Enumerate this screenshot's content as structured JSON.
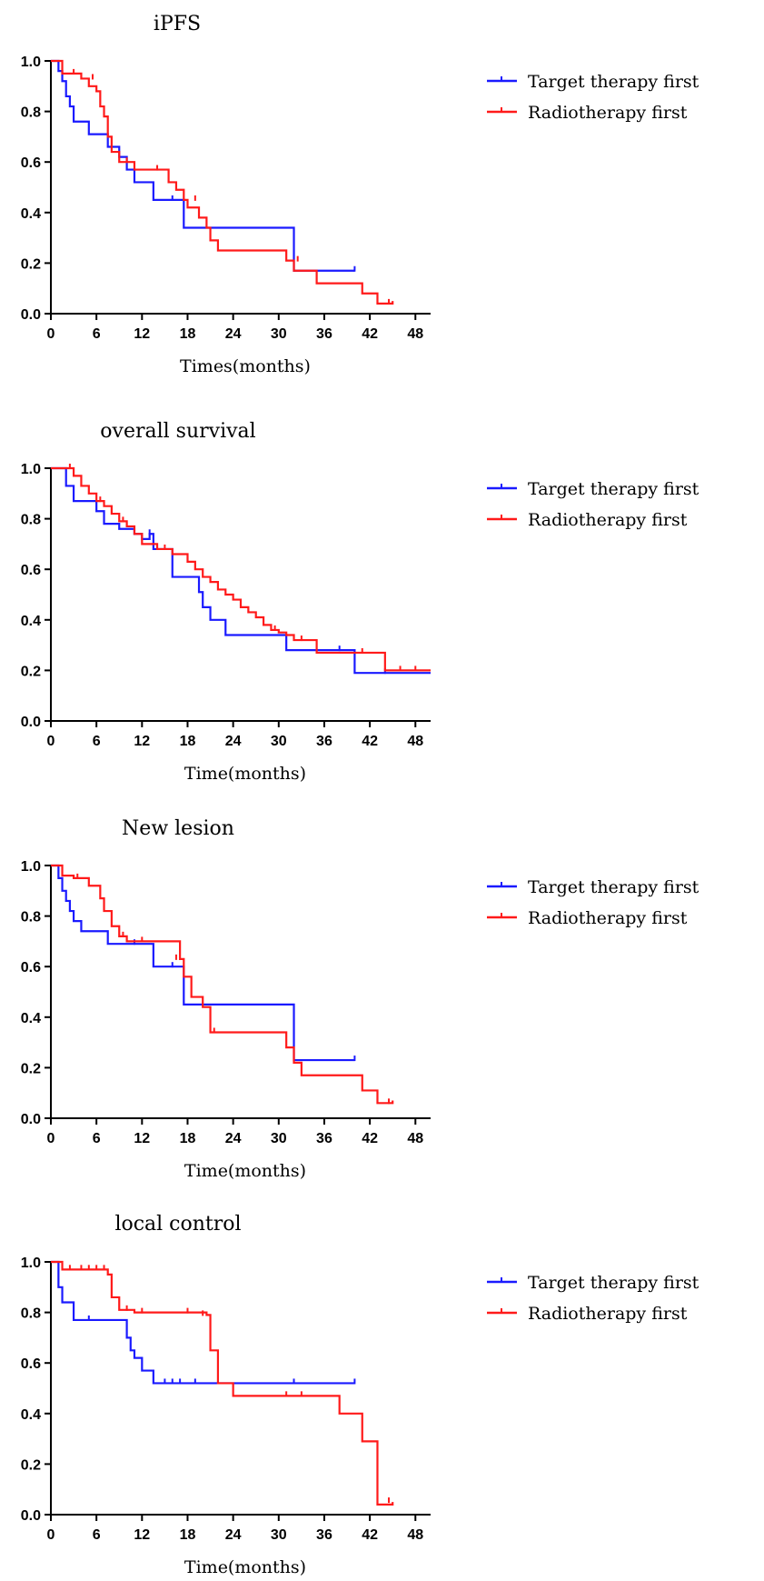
{
  "chart_data": [
    {
      "type": "line",
      "title": "iPFS",
      "xlabel": "Times(months)",
      "ylabel": "",
      "xlim": [
        0,
        50
      ],
      "ylim": [
        0,
        1.0
      ],
      "xticks": [
        0,
        6,
        12,
        18,
        24,
        30,
        36,
        42,
        48
      ],
      "yticks": [
        0.0,
        0.2,
        0.4,
        0.6,
        0.8,
        1.0
      ],
      "xtick_labels": [
        "0",
        "6",
        "12",
        "18",
        "24",
        "30",
        "36",
        "42",
        "48"
      ],
      "ytick_labels": [
        "0.0",
        "0.2",
        "0.4",
        "0.6",
        "0.8",
        "1.0"
      ],
      "grid": false,
      "legend_position": "right",
      "series": [
        {
          "name": "Target therapy first",
          "color": "#1a1aff",
          "x": [
            0,
            1,
            1.5,
            2,
            2.5,
            3,
            5,
            7.5,
            9,
            10,
            11,
            13.5,
            15,
            16,
            17,
            17.5,
            20,
            32,
            40
          ],
          "y": [
            1.0,
            0.96,
            0.92,
            0.86,
            0.82,
            0.76,
            0.71,
            0.66,
            0.62,
            0.57,
            0.52,
            0.45,
            0.45,
            0.45,
            0.45,
            0.34,
            0.34,
            0.17,
            0.17
          ],
          "censor_x": [
            16,
            40
          ],
          "censor_y": [
            0.45,
            0.17
          ]
        },
        {
          "name": "Radiotherapy first",
          "color": "#ff1a1a",
          "x": [
            0,
            1.5,
            2,
            4,
            5,
            6,
            6.5,
            7,
            7.5,
            8,
            9,
            11,
            15.5,
            16.5,
            17.5,
            18,
            19.5,
            20.5,
            21,
            22,
            31,
            32,
            35,
            41,
            43,
            45
          ],
          "y": [
            1.0,
            0.95,
            0.95,
            0.93,
            0.9,
            0.88,
            0.82,
            0.78,
            0.7,
            0.64,
            0.6,
            0.57,
            0.52,
            0.49,
            0.45,
            0.42,
            0.38,
            0.34,
            0.29,
            0.25,
            0.21,
            0.17,
            0.12,
            0.08,
            0.04,
            0.05
          ],
          "censor_x": [
            3,
            5.5,
            10,
            14,
            19,
            32.5,
            44.5
          ],
          "censor_y": [
            0.95,
            0.93,
            0.6,
            0.57,
            0.45,
            0.21,
            0.04
          ]
        }
      ]
    },
    {
      "type": "line",
      "title": "overall survival",
      "xlabel": "Time(months)",
      "ylabel": "",
      "xlim": [
        0,
        50
      ],
      "ylim": [
        0,
        1.0
      ],
      "xticks": [
        0,
        6,
        12,
        18,
        24,
        30,
        36,
        42,
        48
      ],
      "yticks": [
        0.0,
        0.2,
        0.4,
        0.6,
        0.8,
        1.0
      ],
      "xtick_labels": [
        "0",
        "6",
        "12",
        "18",
        "24",
        "30",
        "36",
        "42",
        "48"
      ],
      "ytick_labels": [
        "0.0",
        "0.2",
        "0.4",
        "0.6",
        "0.8",
        "1.0"
      ],
      "grid": false,
      "legend_position": "right",
      "series": [
        {
          "name": "Target therapy first",
          "color": "#1a1aff",
          "x": [
            0,
            2,
            3,
            6,
            7,
            9,
            11,
            12,
            13,
            13.5,
            16,
            19.5,
            20,
            21,
            23,
            31,
            40,
            50
          ],
          "y": [
            1.0,
            0.93,
            0.87,
            0.83,
            0.78,
            0.76,
            0.74,
            0.72,
            0.74,
            0.68,
            0.57,
            0.51,
            0.45,
            0.4,
            0.34,
            0.28,
            0.19,
            0.19
          ],
          "censor_x": [
            11,
            13,
            38,
            44
          ],
          "censor_y": [
            0.74,
            0.74,
            0.28,
            0.19
          ]
        },
        {
          "name": "Radiotherapy first",
          "color": "#ff1a1a",
          "x": [
            0,
            2,
            3,
            4,
            5,
            6,
            7,
            8,
            9,
            10,
            11,
            12,
            14,
            16,
            18,
            19,
            20,
            21,
            22,
            23,
            24,
            25,
            26,
            27,
            28,
            29,
            30,
            31,
            32,
            35,
            44,
            50
          ],
          "y": [
            1.0,
            1.0,
            0.97,
            0.93,
            0.9,
            0.87,
            0.85,
            0.82,
            0.79,
            0.77,
            0.74,
            0.7,
            0.68,
            0.66,
            0.63,
            0.6,
            0.57,
            0.55,
            0.52,
            0.5,
            0.48,
            0.45,
            0.43,
            0.41,
            0.38,
            0.36,
            0.35,
            0.34,
            0.32,
            0.27,
            0.2,
            0.2
          ],
          "censor_x": [
            2.5,
            6.5,
            9.5,
            15,
            29.5,
            33,
            41,
            46,
            48
          ],
          "censor_y": [
            1.0,
            0.87,
            0.79,
            0.68,
            0.36,
            0.32,
            0.27,
            0.2,
            0.2
          ]
        }
      ]
    },
    {
      "type": "line",
      "title": "New lesion",
      "xlabel": "Time(months)",
      "ylabel": "",
      "xlim": [
        0,
        50
      ],
      "ylim": [
        0,
        1.0
      ],
      "xticks": [
        0,
        6,
        12,
        18,
        24,
        30,
        36,
        42,
        48
      ],
      "yticks": [
        0.0,
        0.2,
        0.4,
        0.6,
        0.8,
        1.0
      ],
      "xtick_labels": [
        "0",
        "6",
        "12",
        "18",
        "24",
        "30",
        "36",
        "42",
        "48"
      ],
      "ytick_labels": [
        "0.0",
        "0.2",
        "0.4",
        "0.6",
        "0.8",
        "1.0"
      ],
      "grid": false,
      "legend_position": "right",
      "series": [
        {
          "name": "Target therapy first",
          "color": "#1a1aff",
          "x": [
            0,
            1,
            1.5,
            2,
            2.5,
            3,
            4,
            7.5,
            13.5,
            17.5,
            32,
            40
          ],
          "y": [
            1.0,
            0.95,
            0.9,
            0.86,
            0.82,
            0.78,
            0.74,
            0.69,
            0.6,
            0.45,
            0.23,
            0.23
          ],
          "censor_x": [
            11,
            16,
            40
          ],
          "censor_y": [
            0.69,
            0.6,
            0.23
          ]
        },
        {
          "name": "Radiotherapy first",
          "color": "#ff1a1a",
          "x": [
            0,
            1.5,
            3,
            5,
            6.5,
            7,
            8,
            9,
            10,
            17,
            17.5,
            18.5,
            20,
            21,
            31,
            32,
            33,
            41,
            43,
            45
          ],
          "y": [
            1.0,
            0.96,
            0.95,
            0.92,
            0.87,
            0.82,
            0.76,
            0.72,
            0.7,
            0.63,
            0.56,
            0.48,
            0.44,
            0.34,
            0.28,
            0.22,
            0.17,
            0.11,
            0.06,
            0.07
          ],
          "censor_x": [
            3.5,
            9.5,
            12,
            16.5,
            21.5,
            44.5
          ],
          "censor_y": [
            0.95,
            0.72,
            0.7,
            0.63,
            0.34,
            0.06
          ]
        }
      ]
    },
    {
      "type": "line",
      "title": "local control",
      "xlabel": "Time(months)",
      "ylabel": "",
      "xlim": [
        0,
        50
      ],
      "ylim": [
        0,
        1.0
      ],
      "xticks": [
        0,
        6,
        12,
        18,
        24,
        30,
        36,
        42,
        48
      ],
      "yticks": [
        0.0,
        0.2,
        0.4,
        0.6,
        0.8,
        1.0
      ],
      "xtick_labels": [
        "0",
        "6",
        "12",
        "18",
        "24",
        "30",
        "36",
        "42",
        "48"
      ],
      "ytick_labels": [
        "0.0",
        "0.2",
        "0.4",
        "0.6",
        "0.8",
        "1.0"
      ],
      "grid": false,
      "legend_position": "right",
      "series": [
        {
          "name": "Target therapy first",
          "color": "#1a1aff",
          "x": [
            0,
            1,
            1.5,
            3,
            10,
            10.5,
            11,
            12,
            13.5,
            40
          ],
          "y": [
            1.0,
            0.9,
            0.84,
            0.77,
            0.7,
            0.65,
            0.62,
            0.57,
            0.52,
            0.52
          ],
          "censor_x": [
            5,
            15,
            16,
            17,
            19,
            32,
            40
          ],
          "censor_y": [
            0.77,
            0.52,
            0.52,
            0.52,
            0.52,
            0.52,
            0.52
          ]
        },
        {
          "name": "Radiotherapy first",
          "color": "#ff1a1a",
          "x": [
            0,
            1.5,
            7.5,
            8,
            9,
            11,
            20.5,
            21,
            22,
            24,
            38,
            41,
            43,
            45
          ],
          "y": [
            1.0,
            0.97,
            0.95,
            0.86,
            0.81,
            0.8,
            0.79,
            0.65,
            0.52,
            0.47,
            0.4,
            0.29,
            0.04,
            0.05
          ],
          "censor_x": [
            2.5,
            4,
            5,
            6,
            7,
            10,
            12,
            18,
            20,
            31,
            33,
            44.5
          ],
          "censor_y": [
            0.97,
            0.97,
            0.97,
            0.97,
            0.97,
            0.81,
            0.8,
            0.8,
            0.79,
            0.47,
            0.47,
            0.05
          ]
        }
      ]
    }
  ]
}
